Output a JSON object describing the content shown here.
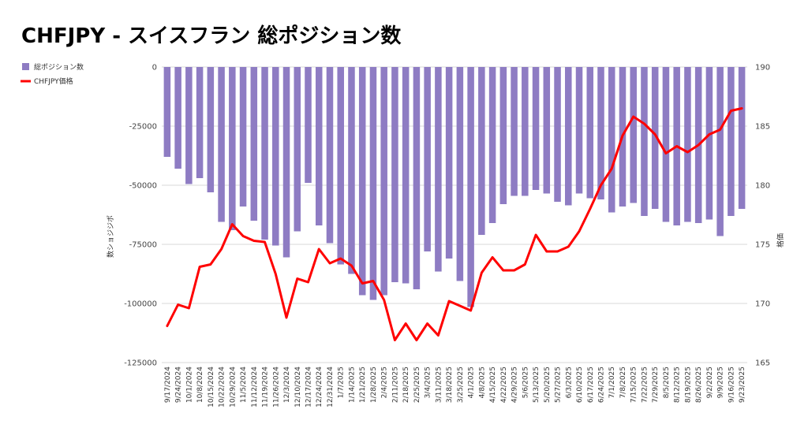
{
  "chart_data": {
    "type": "bar",
    "title": "CHFJPY - スイスフラン 総ポジション数",
    "ylabel_left": "数ショジジポ",
    "ylabel_right": "格価",
    "ylim_left": [
      -125000,
      0
    ],
    "ylim_right": [
      165,
      190
    ],
    "yticks_left": [
      "0",
      "-25000",
      "-50000",
      "-75000",
      "-100000",
      "-125000"
    ],
    "yticks_right": [
      "190",
      "185",
      "180",
      "175",
      "170",
      "165"
    ],
    "legend": [
      {
        "name": "総ポジション数",
        "color": "#8e7cc3",
        "kind": "bar"
      },
      {
        "name": "CHFJPY価格",
        "color": "#ff0000",
        "kind": "line"
      }
    ],
    "categories": [
      "9/17/2024",
      "9/24/2024",
      "10/1/2024",
      "10/8/2024",
      "10/15/2024",
      "10/22/2024",
      "10/29/2024",
      "11/5/2024",
      "11/12/2024",
      "11/19/2024",
      "11/26/2024",
      "12/3/2024",
      "12/10/2024",
      "12/17/2024",
      "12/24/2024",
      "12/31/2024",
      "1/7/2025",
      "1/14/2025",
      "1/21/2025",
      "1/28/2025",
      "2/4/2025",
      "2/11/2025",
      "2/18/2025",
      "2/25/2025",
      "3/4/2025",
      "3/11/2025",
      "3/18/2025",
      "3/25/2025",
      "4/1/2025",
      "4/8/2025",
      "4/15/2025",
      "4/22/2025",
      "4/29/2025",
      "5/6/2025",
      "5/13/2025",
      "5/20/2025",
      "5/27/2025",
      "6/3/2025",
      "6/10/2025",
      "6/17/2025",
      "6/24/2025",
      "7/1/2025",
      "7/8/2025",
      "7/15/2025",
      "7/22/2025",
      "7/29/2025",
      "8/5/2025",
      "8/12/2025",
      "8/19/2025",
      "8/26/2025",
      "9/2/2025",
      "9/9/2025",
      "9/16/2025",
      "9/23/2025"
    ],
    "series": [
      {
        "name": "総ポジション数",
        "type": "bar",
        "axis": "left",
        "color": "#8e7cc3",
        "values": [
          -38000,
          -43000,
          -49500,
          -47000,
          -53000,
          -65500,
          -69000,
          -59000,
          -65000,
          -73000,
          -75500,
          -80500,
          -69500,
          -49000,
          -67000,
          -74500,
          -83500,
          -87500,
          -96500,
          -98500,
          -96500,
          -91000,
          -91500,
          -94000,
          -78000,
          -86500,
          -81000,
          -90500,
          -101500,
          -71000,
          -66000,
          -58000,
          -54500,
          -54500,
          -52000,
          -53500,
          -57000,
          -58500,
          -53500,
          -55500,
          -56000,
          -61500,
          -59000,
          -57500,
          -63000,
          -60000,
          -65500,
          -67000,
          -65500,
          -66000,
          -64500,
          -71500,
          -63000,
          -60000
        ]
      },
      {
        "name": "CHFJPY価格",
        "type": "line",
        "axis": "right",
        "color": "#ff0000",
        "values": [
          168.1,
          169.9,
          169.6,
          173.1,
          173.3,
          174.6,
          176.7,
          175.7,
          175.3,
          175.2,
          172.5,
          168.8,
          172.1,
          171.8,
          174.6,
          173.4,
          173.8,
          173.2,
          171.7,
          171.9,
          170.3,
          166.9,
          168.3,
          166.9,
          168.3,
          167.3,
          170.2,
          169.8,
          169.4,
          172.6,
          173.9,
          172.8,
          172.8,
          173.3,
          175.8,
          174.4,
          174.4,
          174.8,
          176.1,
          178.0,
          180.0,
          181.4,
          184.2,
          185.8,
          185.2,
          184.3,
          182.7,
          183.3,
          182.8,
          183.4,
          184.3,
          184.7,
          186.3,
          186.5
        ]
      }
    ]
  }
}
